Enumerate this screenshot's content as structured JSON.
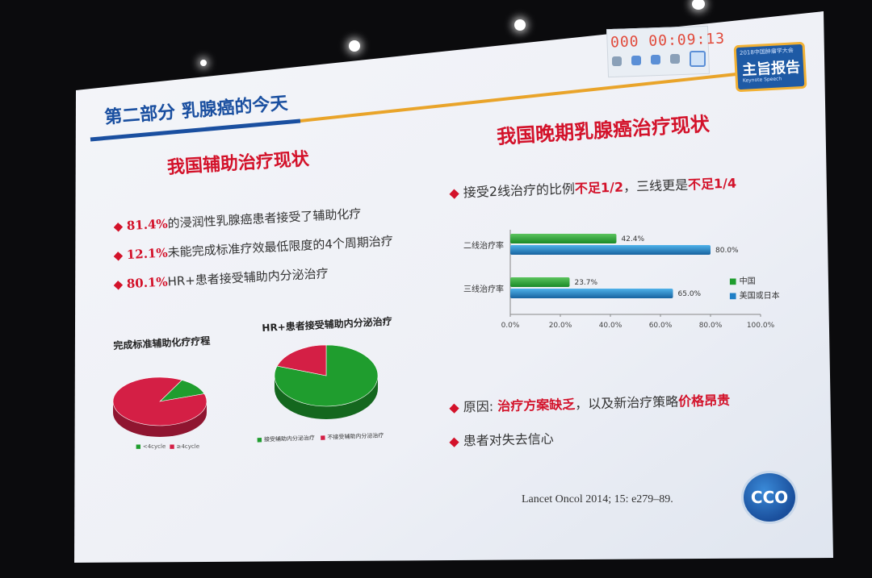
{
  "timer": {
    "display": "000 00:09:13"
  },
  "badge": {
    "small_top": "2018中国肿瘤学大会",
    "main": "主旨报告",
    "small_bottom": "Keynote Speech"
  },
  "section_header": "第二部分 乳腺癌的今天",
  "left": {
    "title": "我国辅助治疗现状",
    "bullets": [
      {
        "pct": "81.4%",
        "text": "的浸润性乳腺癌患者接受了辅助化疗"
      },
      {
        "pct": "12.1%",
        "text": "未能完成标准疗效最低限度的4个周期治疗"
      },
      {
        "pct": "80.1%",
        "text": "HR+患者接受辅助内分泌治疗"
      }
    ]
  },
  "right": {
    "title": "我国晚期乳腺癌治疗现状",
    "bullet1_a": "接受2线治疗的比例",
    "bullet1_b": "不足1/2",
    "bullet1_c": "，三线更是",
    "bullet1_d": "不足1/4",
    "bullet2_a": "原因: ",
    "bullet2_b": "治疗方案缺乏",
    "bullet2_c": "，以及新治疗策略",
    "bullet2_d": "价格昂贵",
    "bullet3": "患者对失去信心"
  },
  "citation": "Lancet Oncol 2014; 15: e279–89.",
  "logo": "CCO",
  "colors": {
    "red": "#d3122a",
    "green": "#1f9d2e",
    "blue": "#1f7fc6",
    "pie_red": "#d41f45"
  },
  "chart_data": [
    {
      "type": "pie",
      "title": "完成标准辅助化疗疗程",
      "labels": [
        "<4cycle",
        "≥4cycle"
      ],
      "values": [
        12.1,
        87.9
      ],
      "colors": [
        "#1f9d2e",
        "#d41f45"
      ]
    },
    {
      "type": "pie",
      "title": "HR+患者接受辅助内分泌治疗",
      "labels": [
        "接受辅助内分泌治疗",
        "不接受辅助内分泌治疗"
      ],
      "values": [
        80.1,
        19.9
      ],
      "colors": [
        "#1f9d2e",
        "#d41f45"
      ]
    },
    {
      "type": "bar",
      "orientation": "horizontal",
      "categories": [
        "二线治疗率",
        "三线治疗率"
      ],
      "series": [
        {
          "name": "中国",
          "values": [
            42.4,
            23.7
          ],
          "labels": [
            "42.4%",
            "23.7%"
          ],
          "color": "#1f9d2e"
        },
        {
          "name": "美国或日本",
          "values": [
            80.0,
            65.0
          ],
          "labels": [
            "80.0%",
            "65.0%"
          ],
          "color": "#1f7fc6"
        }
      ],
      "xlim": [
        0,
        100
      ],
      "xticks": [
        "0.0%",
        "20.0%",
        "40.0%",
        "60.0%",
        "80.0%",
        "100.0%"
      ],
      "legend": "right"
    }
  ]
}
